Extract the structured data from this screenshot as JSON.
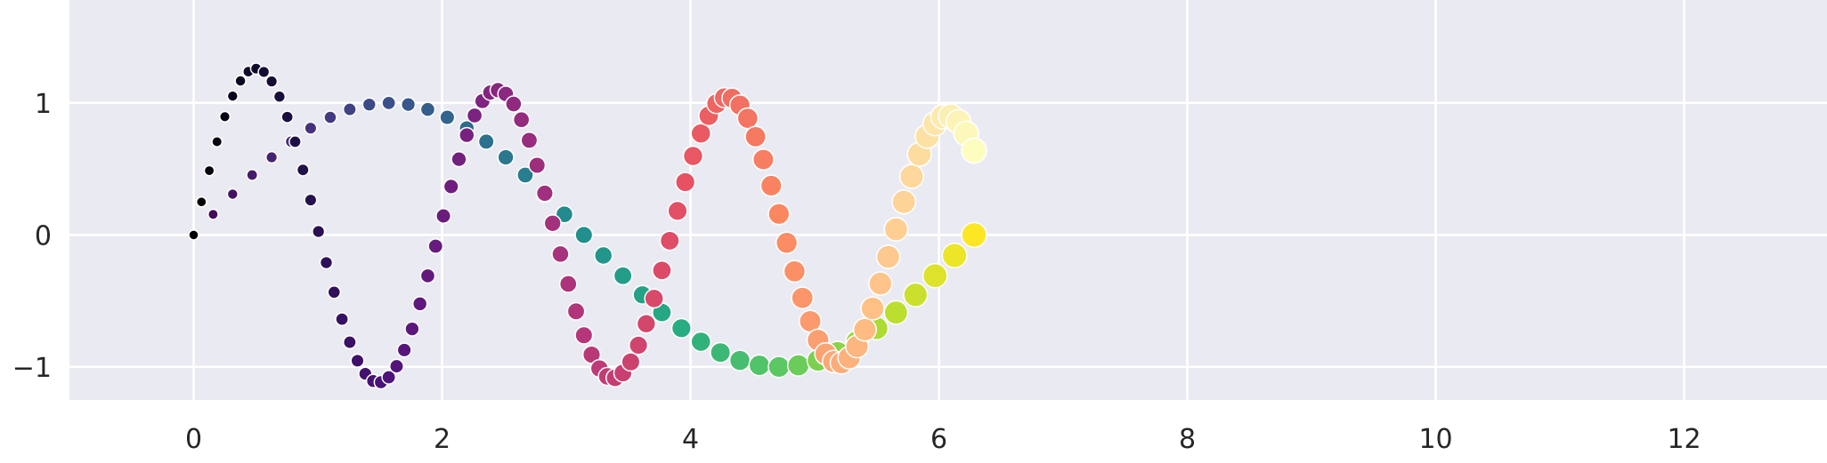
{
  "chart_data": {
    "type": "scatter",
    "title": "",
    "xlabel": "",
    "ylabel": "",
    "xlim": [
      -1.0,
      13.15
    ],
    "ylim": [
      -1.25,
      1.78
    ],
    "xticks": [
      0,
      2,
      4,
      6,
      8,
      10,
      12
    ],
    "xtick_labels": [
      "0",
      "2",
      "4",
      "6",
      "8",
      "10",
      "12"
    ],
    "yticks": [
      -1,
      0,
      1
    ],
    "ytick_labels": [
      "−1",
      "0",
      "1"
    ],
    "grid": true,
    "background_color": "#eaeaf2",
    "grid_color": "#ffffff",
    "marker_edge_color": "#ffffff",
    "series": [
      {
        "palette": "magma",
        "x_values": [
          0.0,
          0.063,
          0.126,
          0.188,
          0.251,
          0.314,
          0.377,
          0.44,
          0.503,
          0.565,
          0.628,
          0.691,
          0.754,
          0.817,
          0.88,
          0.942,
          1.005,
          1.068,
          1.131,
          1.194,
          1.257,
          1.319,
          1.382,
          1.445,
          1.508,
          1.571,
          1.634,
          1.696,
          1.759,
          1.822,
          1.885,
          1.948,
          2.011,
          2.073,
          2.136,
          2.199,
          2.262,
          2.325,
          2.388,
          2.45,
          2.513,
          2.576,
          2.639,
          2.702,
          2.765,
          2.827,
          2.89,
          2.953,
          3.016,
          3.079,
          3.142,
          3.204,
          3.267,
          3.33,
          3.393,
          3.456,
          3.519,
          3.581,
          3.644,
          3.707,
          3.77,
          3.833,
          3.896,
          3.958,
          4.021,
          4.084,
          4.147,
          4.21,
          4.273,
          4.335,
          4.398,
          4.461,
          4.524,
          4.587,
          4.65,
          4.712,
          4.775,
          4.838,
          4.901,
          4.964,
          5.027,
          5.089,
          5.152,
          5.215,
          5.278,
          5.341,
          5.404,
          5.466,
          5.529,
          5.592,
          5.655,
          5.718,
          5.781,
          5.843,
          5.906,
          5.969,
          6.032,
          6.095,
          6.158,
          6.22,
          6.283
        ],
        "y_values": [
          0.0,
          0.25,
          0.487,
          0.706,
          0.896,
          1.052,
          1.167,
          1.237,
          1.26,
          1.235,
          1.163,
          1.048,
          0.894,
          0.706,
          0.493,
          0.264,
          0.026,
          -0.21,
          -0.434,
          -0.638,
          -0.813,
          -0.953,
          -1.052,
          -1.107,
          -1.116,
          -1.078,
          -0.995,
          -0.872,
          -0.712,
          -0.522,
          -0.31,
          -0.085,
          0.144,
          0.367,
          0.574,
          0.756,
          0.905,
          1.014,
          1.079,
          1.097,
          1.068,
          0.992,
          0.873,
          0.717,
          0.528,
          0.316,
          0.088,
          -0.145,
          -0.371,
          -0.579,
          -0.76,
          -0.907,
          -1.012,
          -1.072,
          -1.083,
          -1.046,
          -0.962,
          -0.836,
          -0.673,
          -0.482,
          -0.269,
          -0.044,
          0.182,
          0.4,
          0.598,
          0.769,
          0.903,
          0.995,
          1.04,
          1.036,
          0.983,
          0.884,
          0.744,
          0.571,
          0.373,
          0.159,
          -0.06,
          -0.276,
          -0.477,
          -0.654,
          -0.797,
          -0.901,
          -0.959,
          -0.969,
          -0.93,
          -0.845,
          -0.718,
          -0.557,
          -0.369,
          -0.166,
          0.043,
          0.25,
          0.443,
          0.611,
          0.747,
          0.843,
          0.895,
          0.9,
          0.857,
          0.768,
          0.639
        ],
        "color_values": [
          0.0,
          0.01,
          0.02,
          0.03,
          0.04,
          0.05,
          0.06,
          0.07,
          0.08,
          0.09,
          0.1,
          0.11,
          0.12,
          0.13,
          0.14,
          0.15,
          0.16,
          0.17,
          0.18,
          0.19,
          0.2,
          0.21,
          0.22,
          0.23,
          0.24,
          0.25,
          0.26,
          0.27,
          0.28,
          0.29,
          0.3,
          0.31,
          0.32,
          0.33,
          0.34,
          0.35,
          0.36,
          0.37,
          0.38,
          0.39,
          0.4,
          0.41,
          0.42,
          0.43,
          0.44,
          0.45,
          0.46,
          0.47,
          0.48,
          0.49,
          0.5,
          0.51,
          0.52,
          0.53,
          0.54,
          0.55,
          0.56,
          0.57,
          0.58,
          0.59,
          0.6,
          0.61,
          0.62,
          0.63,
          0.64,
          0.65,
          0.66,
          0.67,
          0.68,
          0.69,
          0.7,
          0.71,
          0.72,
          0.73,
          0.74,
          0.75,
          0.76,
          0.77,
          0.78,
          0.79,
          0.8,
          0.81,
          0.82,
          0.83,
          0.84,
          0.85,
          0.86,
          0.87,
          0.88,
          0.89,
          0.9,
          0.91,
          0.92,
          0.93,
          0.94,
          0.95,
          0.96,
          0.97,
          0.98,
          0.99,
          1.0
        ],
        "size_values": [
          0.0,
          0.01,
          0.02,
          0.03,
          0.04,
          0.05,
          0.06,
          0.07,
          0.08,
          0.09,
          0.1,
          0.11,
          0.12,
          0.13,
          0.14,
          0.15,
          0.16,
          0.17,
          0.18,
          0.19,
          0.2,
          0.21,
          0.22,
          0.23,
          0.24,
          0.25,
          0.26,
          0.27,
          0.28,
          0.29,
          0.3,
          0.31,
          0.32,
          0.33,
          0.34,
          0.35,
          0.36,
          0.37,
          0.38,
          0.39,
          0.4,
          0.41,
          0.42,
          0.43,
          0.44,
          0.45,
          0.46,
          0.47,
          0.48,
          0.49,
          0.5,
          0.51,
          0.52,
          0.53,
          0.54,
          0.55,
          0.56,
          0.57,
          0.58,
          0.59,
          0.6,
          0.61,
          0.62,
          0.63,
          0.64,
          0.65,
          0.66,
          0.67,
          0.68,
          0.69,
          0.7,
          0.71,
          0.72,
          0.73,
          0.74,
          0.75,
          0.76,
          0.77,
          0.78,
          0.79,
          0.8,
          0.81,
          0.82,
          0.83,
          0.84,
          0.85,
          0.86,
          0.87,
          0.88,
          0.89,
          0.9,
          0.91,
          0.92,
          0.93,
          0.94,
          0.95,
          0.96,
          0.97,
          0.98,
          0.99,
          1.0
        ]
      },
      {
        "palette": "viridis",
        "x_values": [
          0.0,
          0.157,
          0.314,
          0.471,
          0.628,
          0.785,
          0.942,
          1.1,
          1.257,
          1.414,
          1.571,
          1.728,
          1.885,
          2.042,
          2.199,
          2.356,
          2.513,
          2.67,
          2.827,
          2.985,
          3.142,
          3.299,
          3.456,
          3.613,
          3.77,
          3.927,
          4.084,
          4.241,
          4.398,
          4.555,
          4.712,
          4.869,
          5.027,
          5.184,
          5.341,
          5.498,
          5.655,
          5.812,
          5.969,
          6.126,
          6.283
        ],
        "y_values": [
          0.0,
          0.156,
          0.309,
          0.454,
          0.588,
          0.707,
          0.809,
          0.891,
          0.951,
          0.988,
          1.0,
          0.988,
          0.951,
          0.891,
          0.809,
          0.707,
          0.588,
          0.454,
          0.309,
          0.156,
          0.0,
          -0.156,
          -0.309,
          -0.454,
          -0.588,
          -0.707,
          -0.809,
          -0.891,
          -0.951,
          -0.988,
          -1.0,
          -0.988,
          -0.951,
          -0.891,
          -0.809,
          -0.707,
          -0.588,
          -0.454,
          -0.309,
          -0.156,
          0.0
        ],
        "color_values": [
          0.0,
          0.025,
          0.05,
          0.075,
          0.1,
          0.125,
          0.15,
          0.175,
          0.2,
          0.225,
          0.25,
          0.275,
          0.3,
          0.325,
          0.35,
          0.375,
          0.4,
          0.425,
          0.45,
          0.475,
          0.5,
          0.525,
          0.55,
          0.575,
          0.6,
          0.625,
          0.65,
          0.675,
          0.7,
          0.725,
          0.75,
          0.775,
          0.8,
          0.825,
          0.85,
          0.875,
          0.9,
          0.925,
          0.95,
          0.975,
          1.0
        ],
        "size_values": [
          0.0,
          0.025,
          0.05,
          0.075,
          0.1,
          0.125,
          0.15,
          0.175,
          0.2,
          0.225,
          0.25,
          0.275,
          0.3,
          0.325,
          0.35,
          0.375,
          0.4,
          0.425,
          0.45,
          0.475,
          0.5,
          0.525,
          0.55,
          0.575,
          0.6,
          0.625,
          0.65,
          0.675,
          0.7,
          0.725,
          0.75,
          0.775,
          0.8,
          0.825,
          0.85,
          0.875,
          0.9,
          0.925,
          0.95,
          0.975,
          1.0
        ]
      },
      {
        "palette": "magma",
        "x_values": [
          0.0,
          0.063,
          0.126,
          0.188,
          0.251,
          0.314,
          0.377,
          0.44,
          0.503,
          0.565,
          0.628,
          0.691,
          0.754,
          0.817,
          0.88,
          0.942,
          1.005,
          1.068,
          1.131,
          1.194,
          1.257,
          1.319,
          1.382,
          1.445,
          1.508,
          1.571,
          1.634,
          1.696,
          1.759,
          1.822,
          1.885,
          1.948,
          2.011,
          2.073,
          2.136,
          2.199,
          2.262,
          2.325,
          2.388,
          2.45,
          2.513,
          2.576,
          2.639,
          2.702,
          2.765,
          2.827,
          2.89,
          2.953,
          3.016,
          3.079,
          3.142,
          3.204,
          3.267,
          3.33,
          3.393,
          3.456,
          3.519,
          3.581,
          3.644,
          3.707,
          3.77,
          3.833,
          3.896,
          3.958,
          4.021,
          4.084,
          4.147,
          4.21,
          4.273,
          4.335,
          4.398,
          4.461,
          4.524,
          4.587,
          4.65,
          4.712,
          4.775,
          4.838,
          4.901,
          4.964,
          5.027,
          5.089,
          5.152,
          5.215,
          5.278,
          5.341,
          5.404,
          5.466,
          5.529,
          5.592,
          5.655,
          5.718,
          5.781,
          5.843,
          5.906,
          5.969,
          6.032,
          6.095,
          6.158,
          6.22,
          6.283
        ],
        "y_values": [
          0.0,
          0.25,
          0.487,
          0.706,
          0.896,
          1.052,
          1.167,
          1.237,
          1.26,
          1.235,
          1.163,
          1.048,
          0.894,
          0.706,
          0.493,
          0.264,
          0.026,
          -0.21,
          -0.434,
          -0.638,
          -0.813,
          -0.953,
          -1.052,
          -1.107,
          -1.116,
          -1.078,
          -0.995,
          -0.872,
          -0.712,
          -0.522,
          -0.31,
          -0.085,
          0.144,
          0.367,
          0.574,
          0.756,
          0.905,
          1.014,
          1.079,
          1.097,
          1.068,
          0.992,
          0.873,
          0.717,
          0.528,
          0.316,
          0.088,
          -0.145,
          -0.371,
          -0.579,
          -0.76,
          -0.907,
          -1.012,
          -1.072,
          -1.083,
          -1.046,
          -0.962,
          -0.836,
          -0.673,
          -0.482,
          -0.269,
          -0.044,
          0.182,
          0.4,
          0.598,
          0.769,
          0.903,
          0.995,
          1.04,
          1.036,
          0.983,
          0.884,
          0.744,
          0.571,
          0.373,
          0.159,
          -0.06,
          -0.276,
          -0.477,
          -0.654,
          -0.797,
          -0.901,
          -0.959,
          -0.969,
          -0.93,
          -0.845,
          -0.718,
          -0.557,
          -0.369,
          -0.166,
          0.043,
          0.25,
          0.443,
          0.611,
          0.747,
          0.843,
          0.895,
          0.9,
          0.857,
          0.768,
          0.639
        ],
        "color_values": [
          0.0,
          0.01,
          0.02,
          0.03,
          0.04,
          0.05,
          0.06,
          0.07,
          0.08,
          0.09,
          0.1,
          0.11,
          0.12,
          0.13,
          0.14,
          0.15,
          0.16,
          0.17,
          0.18,
          0.19,
          0.2,
          0.21,
          0.22,
          0.23,
          0.24,
          0.25,
          0.26,
          0.27,
          0.28,
          0.29,
          0.3,
          0.31,
          0.32,
          0.33,
          0.34,
          0.35,
          0.36,
          0.37,
          0.38,
          0.39,
          0.4,
          0.41,
          0.42,
          0.43,
          0.44,
          0.45,
          0.46,
          0.47,
          0.48,
          0.49,
          0.5,
          0.51,
          0.52,
          0.53,
          0.54,
          0.55,
          0.56,
          0.57,
          0.58,
          0.59,
          0.6,
          0.61,
          0.62,
          0.63,
          0.64,
          0.65,
          0.66,
          0.67,
          0.68,
          0.69,
          0.7,
          0.71,
          0.72,
          0.73,
          0.74,
          0.75,
          0.76,
          0.77,
          0.78,
          0.79,
          0.8,
          0.81,
          0.82,
          0.83,
          0.84,
          0.85,
          0.86,
          0.87,
          0.88,
          0.89,
          0.9,
          0.91,
          0.92,
          0.93,
          0.94,
          0.95,
          0.96,
          0.97,
          0.98,
          0.99,
          1.0
        ],
        "size_values": [
          0.0,
          0.01,
          0.02,
          0.03,
          0.04,
          0.05,
          0.06,
          0.07,
          0.08,
          0.09,
          0.1,
          0.11,
          0.12,
          0.13,
          0.14,
          0.15,
          0.16,
          0.17,
          0.18,
          0.19,
          0.2,
          0.21,
          0.22,
          0.23,
          0.24,
          0.25,
          0.26,
          0.27,
          0.28,
          0.29,
          0.3,
          0.31,
          0.32,
          0.33,
          0.34,
          0.35,
          0.36,
          0.37,
          0.38,
          0.39,
          0.4,
          0.41,
          0.42,
          0.43,
          0.44,
          0.45,
          0.46,
          0.47,
          0.48,
          0.49,
          0.5,
          0.51,
          0.52,
          0.53,
          0.54,
          0.55,
          0.56,
          0.57,
          0.58,
          0.59,
          0.6,
          0.61,
          0.62,
          0.63,
          0.64,
          0.65,
          0.66,
          0.67,
          0.68,
          0.69,
          0.7,
          0.71,
          0.72,
          0.73,
          0.74,
          0.75,
          0.76,
          0.77,
          0.78,
          0.79,
          0.8,
          0.81,
          0.82,
          0.83,
          0.84,
          0.85,
          0.86,
          0.87,
          0.88,
          0.89,
          0.9,
          0.91,
          0.92,
          0.93,
          0.94,
          0.95,
          0.96,
          0.97,
          0.98,
          0.99,
          1.0
        ]
      }
    ]
  }
}
